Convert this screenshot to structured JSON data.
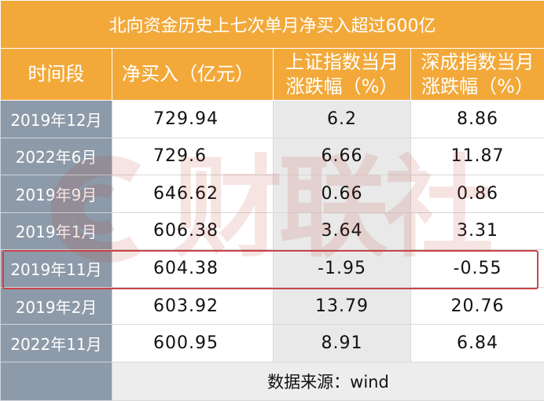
{
  "title": "北向资金历史上七次单月净买入超过600亿",
  "headers": {
    "period": "时间段",
    "net_buy": "净买入（亿元）",
    "sh_line1": "上证指数当月",
    "sh_line2": "涨跌幅（%）",
    "sz_line1": "深成指数当月",
    "sz_line2": "涨跌幅（%）"
  },
  "rows": [
    {
      "period": "2019年12月",
      "net_buy": "729.94",
      "sh": "6.2",
      "sz": "8.86"
    },
    {
      "period": "2022年6月",
      "net_buy": "729.6",
      "sh": "6.66",
      "sz": "11.87"
    },
    {
      "period": "2019年9月",
      "net_buy": "646.62",
      "sh": "0.66",
      "sz": "0.86"
    },
    {
      "period": "2019年1月",
      "net_buy": "606.38",
      "sh": "3.64",
      "sz": "3.31"
    },
    {
      "period": "2019年11月",
      "net_buy": "604.38",
      "sh": "-1.95",
      "sz": "-0.55"
    },
    {
      "period": "2019年2月",
      "net_buy": "603.92",
      "sh": "13.79",
      "sz": "20.76"
    },
    {
      "period": "2022年11月",
      "net_buy": "600.95",
      "sh": "8.91",
      "sz": "6.84"
    }
  ],
  "source": "数据来源：wind",
  "highlighted_row": "2019年11月",
  "watermark": "财联社",
  "colors": {
    "header_orange": "#f2a93a",
    "date_column_gray": "#8d9aa9",
    "highlight_red": "#c8454b"
  }
}
